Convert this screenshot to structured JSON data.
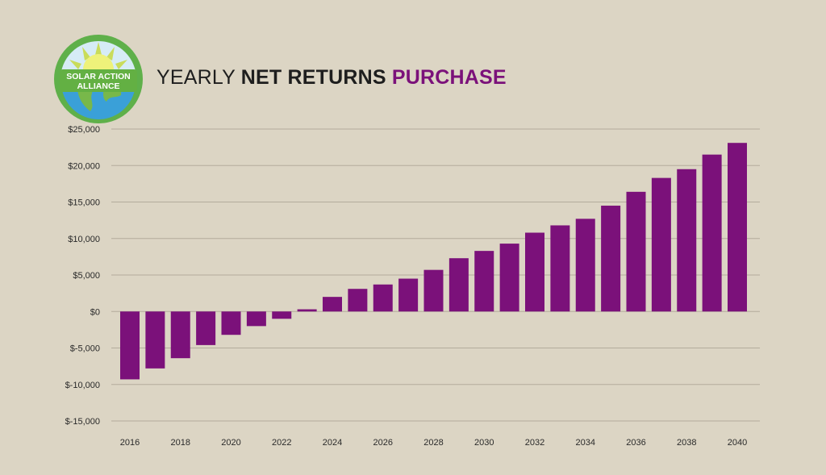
{
  "logo": {
    "line1": "SOLAR ACTION",
    "line2": "ALLIANCE"
  },
  "title": {
    "part1": "YEARLY",
    "part2": "NET RETURNS",
    "part3": "PURCHASE"
  },
  "colors": {
    "bar": "#7b117a",
    "background": "#dcd5c4",
    "grid": "#b3ac9c",
    "accent": "#7b117a"
  },
  "chart_data": {
    "type": "bar",
    "categories": [
      "2016",
      "2017",
      "2018",
      "2019",
      "2020",
      "2021",
      "2022",
      "2023",
      "2024",
      "2025",
      "2026",
      "2027",
      "2028",
      "2029",
      "2030",
      "2031",
      "2032",
      "2033",
      "2034",
      "2035",
      "2036",
      "2037",
      "2038",
      "2039",
      "2040"
    ],
    "values": [
      -9300,
      -7800,
      -6400,
      -4600,
      -3200,
      -2000,
      -1000,
      300,
      2000,
      3100,
      3700,
      4500,
      5700,
      7300,
      8300,
      9300,
      10800,
      11800,
      12700,
      14500,
      16400,
      18300,
      19500,
      21500,
      23100
    ],
    "ylim": [
      -15000,
      25000
    ],
    "yticks": [
      25000,
      20000,
      15000,
      10000,
      5000,
      0,
      -5000,
      -10000,
      -15000
    ],
    "ytick_labels": [
      "$25,000",
      "$20,000",
      "$15,000",
      "$10,000",
      "$5,000",
      "$0",
      "$-5,000",
      "$-10,000",
      "$-15,000"
    ],
    "xtick_labels": [
      "2016",
      "2018",
      "2020",
      "2022",
      "2024",
      "2026",
      "2028",
      "2030",
      "2032",
      "2034",
      "2036",
      "2038",
      "2040"
    ],
    "grid": true,
    "legend": "none",
    "xlabel": "",
    "ylabel": ""
  }
}
